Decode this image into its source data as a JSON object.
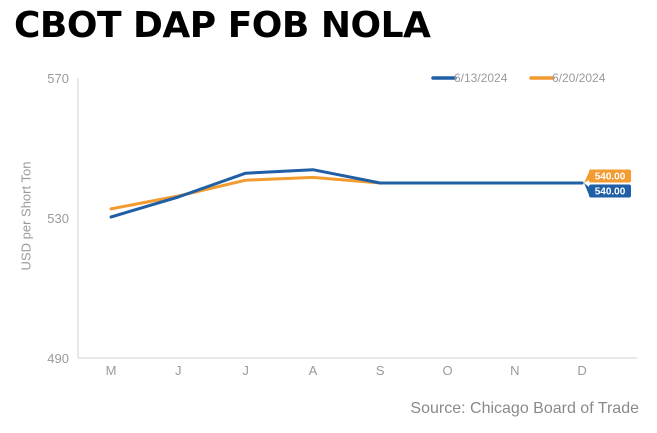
{
  "title": "CBOT DAP FOB NOLA",
  "source": "Source: Chicago Board of Trade",
  "chart_data": {
    "type": "line",
    "ylabel": "USD per Short Ton",
    "xlabel": "",
    "categories": [
      "M",
      "J",
      "J",
      "A",
      "S",
      "O",
      "N",
      "D"
    ],
    "ylim": [
      490,
      570
    ],
    "yticks": [
      490,
      530,
      570
    ],
    "grid": false,
    "legend": "top-right",
    "series": [
      {
        "name": "6/13/2024",
        "color": "#1f5fa6",
        "values": [
          530.3,
          536.0,
          542.8,
          543.8,
          540.0,
          540.0,
          540.0,
          540.0
        ],
        "end_label": "540.00"
      },
      {
        "name": "6/20/2024",
        "color": "#f29b30",
        "values": [
          532.6,
          536.3,
          540.8,
          541.6,
          540.0,
          540.0,
          540.0,
          540.0
        ],
        "end_label": "540.00"
      }
    ]
  }
}
